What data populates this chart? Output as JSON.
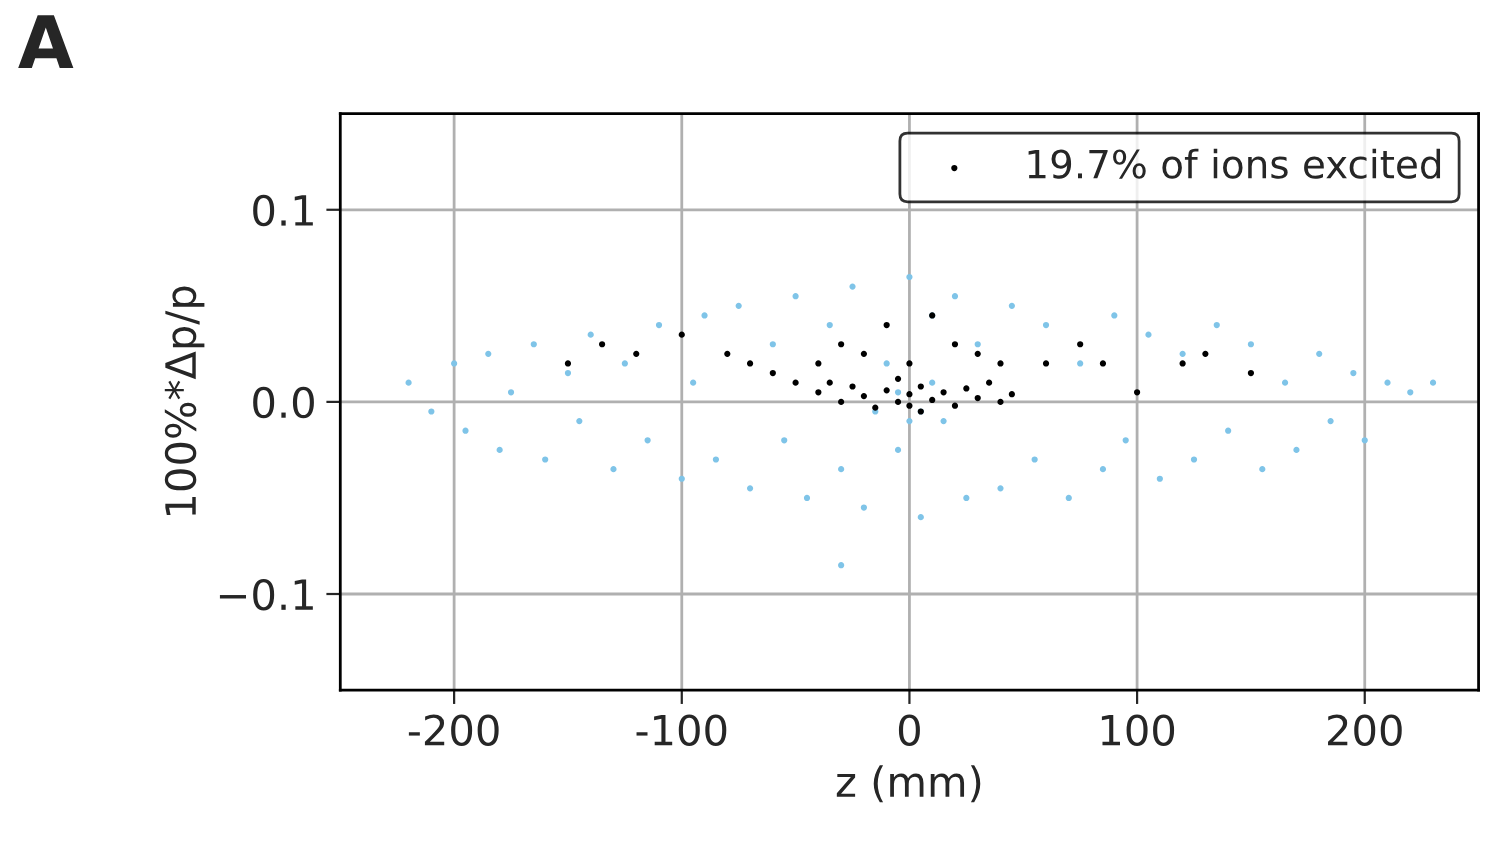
{
  "chart_data": {
    "type": "scatter",
    "xlabel": "z (mm)",
    "ylabel": "100%*Δp/p",
    "annotations": [
      "A"
    ],
    "xlim": [
      -250,
      250
    ],
    "ylim": [
      -0.15,
      0.15
    ],
    "xticks": [
      -200,
      -100,
      0,
      100,
      200
    ],
    "yticks": [
      {
        "value": -0.1,
        "label": "−0.1"
      },
      {
        "value": 0.0,
        "label": "0.0"
      },
      {
        "value": 0.1,
        "label": "0.1"
      }
    ],
    "grid": true,
    "legend": "top right",
    "series": [
      {
        "color": "#7fc4e8",
        "x": [
          -220,
          -210,
          -200,
          -195,
          -185,
          -180,
          -175,
          -165,
          -160,
          -150,
          -145,
          -140,
          -130,
          -125,
          -115,
          -110,
          -100,
          -95,
          -90,
          -85,
          -75,
          -70,
          -60,
          -55,
          -50,
          -45,
          -35,
          -30,
          -25,
          -20,
          -10,
          -5,
          0,
          5,
          10,
          15,
          20,
          25,
          30,
          40,
          45,
          55,
          60,
          70,
          75,
          85,
          90,
          95,
          105,
          110,
          120,
          125,
          135,
          140,
          150,
          155,
          165,
          170,
          180,
          185,
          195,
          200,
          210,
          220,
          230,
          -5,
          5,
          0,
          10,
          -15,
          -30
        ],
        "values": [
          0.01,
          -0.005,
          0.02,
          -0.015,
          0.025,
          -0.025,
          0.005,
          0.03,
          -0.03,
          0.015,
          -0.01,
          0.035,
          -0.035,
          0.02,
          -0.02,
          0.04,
          -0.04,
          0.01,
          0.045,
          -0.03,
          0.05,
          -0.045,
          0.03,
          -0.02,
          0.055,
          -0.05,
          0.04,
          -0.035,
          0.06,
          -0.055,
          0.02,
          -0.025,
          0.065,
          -0.06,
          0.045,
          -0.01,
          0.055,
          -0.05,
          0.03,
          -0.045,
          0.05,
          -0.03,
          0.04,
          -0.05,
          0.02,
          -0.035,
          0.045,
          -0.02,
          0.035,
          -0.04,
          0.025,
          -0.03,
          0.04,
          -0.015,
          0.03,
          -0.035,
          0.01,
          -0.025,
          0.025,
          -0.01,
          0.015,
          -0.02,
          0.01,
          0.005,
          0.01,
          0.005,
          -0.005,
          -0.01,
          0.01,
          -0.005,
          -0.085
        ]
      },
      {
        "name": "19.7% of ions excited",
        "color": "#000000",
        "x": [
          -150,
          -135,
          -120,
          -100,
          -80,
          -70,
          -60,
          -50,
          -40,
          -30,
          -20,
          -10,
          0,
          10,
          20,
          30,
          40,
          60,
          75,
          85,
          100,
          120,
          130,
          150,
          -40,
          -30,
          -25,
          -20,
          -15,
          -10,
          -5,
          0,
          0,
          5,
          10,
          15,
          20,
          25,
          30,
          40,
          -35,
          35,
          -5,
          5,
          45
        ],
        "values": [
          0.02,
          0.03,
          0.025,
          0.035,
          0.025,
          0.02,
          0.015,
          0.01,
          0.02,
          0.03,
          0.025,
          0.04,
          0.02,
          0.045,
          0.03,
          0.025,
          0.02,
          0.02,
          0.03,
          0.02,
          0.005,
          0.02,
          0.025,
          0.015,
          0.005,
          0.0,
          0.008,
          0.003,
          -0.003,
          0.006,
          0.0,
          0.004,
          -0.002,
          0.008,
          0.001,
          0.005,
          -0.002,
          0.007,
          0.002,
          0.0,
          0.01,
          0.01,
          0.012,
          -0.005,
          0.004
        ]
      }
    ]
  }
}
